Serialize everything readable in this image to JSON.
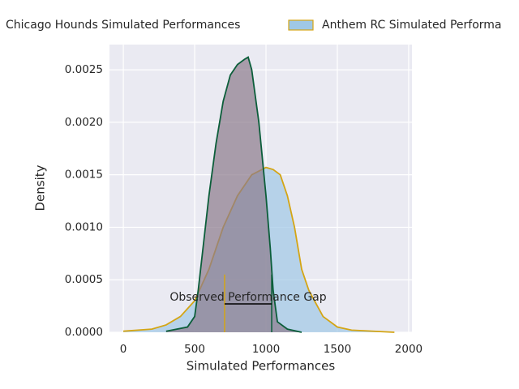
{
  "chart_data": {
    "type": "kde",
    "xlabel": "Simulated Performances",
    "ylabel": "Density",
    "xlim": [
      -97,
      2023
    ],
    "ylim": [
      0,
      0.00274
    ],
    "xticks": [
      0,
      500,
      1000,
      1500,
      2000
    ],
    "yticks": [
      {
        "value": 0,
        "label": "0.0000"
      },
      {
        "value": 0.0005,
        "label": "0.0005"
      },
      {
        "value": 0.001,
        "label": "0.0010"
      },
      {
        "value": 0.0015,
        "label": "0.0015"
      },
      {
        "value": 0.002,
        "label": "0.0020"
      },
      {
        "value": 0.0025,
        "label": "0.0025"
      }
    ],
    "grid": true,
    "legend": "top",
    "series": [
      {
        "name": "Anthem RC Simulated Performa",
        "color": "#d4a514",
        "fill": "#9fc8e6",
        "x": [
          0,
          200,
          300,
          400,
          500,
          600,
          700,
          800,
          900,
          1000,
          1050,
          1100,
          1150,
          1200,
          1250,
          1300,
          1400,
          1500,
          1600,
          1900
        ],
        "values": [
          1e-05,
          3e-05,
          7e-05,
          0.00015,
          0.0003,
          0.0006,
          0.001,
          0.0013,
          0.0015,
          0.00157,
          0.00155,
          0.0015,
          0.0013,
          0.001,
          0.0006,
          0.0004,
          0.00015,
          5e-05,
          2e-05,
          0
        ]
      },
      {
        "name": "Chicago Hounds Simulated Performances",
        "color": "#0b5e3a",
        "fill": "#8c7a8c",
        "x": [
          300,
          450,
          500,
          525,
          550,
          600,
          650,
          700,
          750,
          800,
          850,
          875,
          900,
          950,
          1000,
          1030,
          1050,
          1080,
          1150,
          1250
        ],
        "values": [
          1e-05,
          5e-05,
          0.00015,
          0.0004,
          0.0007,
          0.0013,
          0.0018,
          0.0022,
          0.00245,
          0.00255,
          0.0026,
          0.00262,
          0.0025,
          0.002,
          0.0013,
          0.0008,
          0.0004,
          0.0001,
          3e-05,
          0
        ]
      }
    ],
    "vlines": [
      {
        "x": 710,
        "ymax": 0.00055,
        "color": "#d4a514"
      },
      {
        "x": 1040,
        "ymax": 0.00055,
        "color": "#0b5e3a"
      }
    ],
    "gap": {
      "x": [
        710,
        1040
      ],
      "y": 0.00027,
      "label": "Observed Performance Gap",
      "color": "#000000"
    }
  }
}
